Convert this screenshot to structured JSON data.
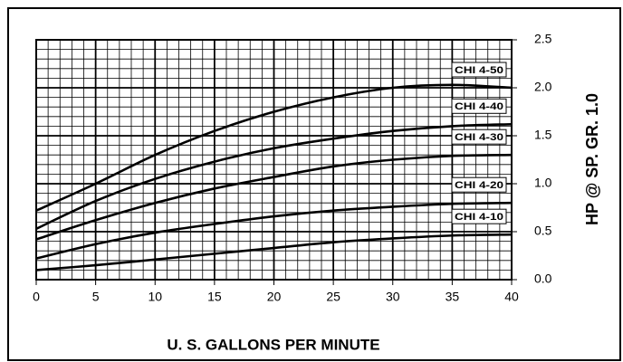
{
  "chart_data": {
    "type": "line",
    "xlabel": "U. S. GALLONS PER MINUTE",
    "ylabel": "HP @ SP. GR. 1.0",
    "x": [
      0,
      5,
      10,
      15,
      20,
      25,
      30,
      35,
      40
    ],
    "series": [
      {
        "name": "CHI 4-50",
        "color": "#000000",
        "values": [
          0.72,
          1.0,
          1.3,
          1.55,
          1.75,
          1.9,
          2.0,
          2.03,
          2.0
        ]
      },
      {
        "name": "CHI 4-40",
        "color": "#000000",
        "values": [
          0.53,
          0.82,
          1.05,
          1.23,
          1.37,
          1.47,
          1.55,
          1.6,
          1.62
        ]
      },
      {
        "name": "CHI 4-30",
        "color": "#000000",
        "values": [
          0.42,
          0.62,
          0.8,
          0.95,
          1.07,
          1.18,
          1.25,
          1.29,
          1.3
        ]
      },
      {
        "name": "CHI 4-20",
        "color": "#000000",
        "values": [
          0.22,
          0.37,
          0.49,
          0.58,
          0.66,
          0.72,
          0.76,
          0.79,
          0.8
        ]
      },
      {
        "name": "CHI 4-10",
        "color": "#000000",
        "values": [
          0.1,
          0.15,
          0.21,
          0.27,
          0.33,
          0.39,
          0.43,
          0.46,
          0.47
        ]
      }
    ],
    "xlim": [
      0,
      40
    ],
    "xticks": [
      0,
      5,
      10,
      15,
      20,
      25,
      30,
      35,
      40
    ],
    "ylim": [
      0,
      2.5
    ],
    "yticks": [
      {
        "value": 0,
        "label": "0.0"
      },
      0.5,
      {
        "value": 1,
        "label": "1.0"
      },
      1.5,
      {
        "value": 2,
        "label": "2.0"
      },
      2.5
    ],
    "yaxis_side": "right",
    "grid": true
  }
}
